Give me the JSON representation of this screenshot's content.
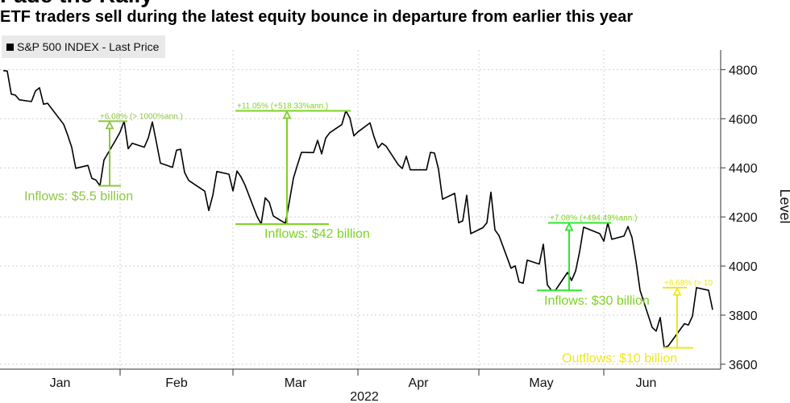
{
  "headline": "Fade the Rally",
  "chart_data": {
    "type": "line",
    "title": "ETF traders sell during the latest equity bounce in departure from earlier this year",
    "ylabel": "Level",
    "xlabel": "2022",
    "ylim": [
      3580,
      4880
    ],
    "yticks": [
      3600,
      3800,
      4000,
      4200,
      4400,
      4600,
      4800
    ],
    "month_ticks": [
      "Jan",
      "Feb",
      "Mar",
      "Apr",
      "May",
      "Jun"
    ],
    "series": [
      {
        "name": "S&P 500 INDEX - Last Price",
        "color": "#000000",
        "dates": [
          "2022-01-03",
          "2022-01-04",
          "2022-01-05",
          "2022-01-06",
          "2022-01-07",
          "2022-01-10",
          "2022-01-11",
          "2022-01-12",
          "2022-01-13",
          "2022-01-14",
          "2022-01-18",
          "2022-01-19",
          "2022-01-20",
          "2022-01-21",
          "2022-01-24",
          "2022-01-25",
          "2022-01-26",
          "2022-01-27",
          "2022-01-28",
          "2022-01-31",
          "2022-02-01",
          "2022-02-02",
          "2022-02-03",
          "2022-02-04",
          "2022-02-07",
          "2022-02-08",
          "2022-02-09",
          "2022-02-10",
          "2022-02-11",
          "2022-02-14",
          "2022-02-15",
          "2022-02-16",
          "2022-02-17",
          "2022-02-18",
          "2022-02-22",
          "2022-02-23",
          "2022-02-24",
          "2022-02-25",
          "2022-02-28",
          "2022-03-01",
          "2022-03-02",
          "2022-03-03",
          "2022-03-04",
          "2022-03-07",
          "2022-03-08",
          "2022-03-09",
          "2022-03-10",
          "2022-03-11",
          "2022-03-14",
          "2022-03-15",
          "2022-03-16",
          "2022-03-17",
          "2022-03-18",
          "2022-03-21",
          "2022-03-22",
          "2022-03-23",
          "2022-03-24",
          "2022-03-25",
          "2022-03-28",
          "2022-03-29",
          "2022-03-30",
          "2022-03-31",
          "2022-04-01",
          "2022-04-04",
          "2022-04-05",
          "2022-04-06",
          "2022-04-07",
          "2022-04-08",
          "2022-04-11",
          "2022-04-12",
          "2022-04-13",
          "2022-04-14",
          "2022-04-18",
          "2022-04-19",
          "2022-04-20",
          "2022-04-21",
          "2022-04-22",
          "2022-04-25",
          "2022-04-26",
          "2022-04-27",
          "2022-04-28",
          "2022-04-29",
          "2022-05-02",
          "2022-05-03",
          "2022-05-04",
          "2022-05-05",
          "2022-05-06",
          "2022-05-09",
          "2022-05-10",
          "2022-05-11",
          "2022-05-12",
          "2022-05-13",
          "2022-05-16",
          "2022-05-17",
          "2022-05-18",
          "2022-05-19",
          "2022-05-20",
          "2022-05-23",
          "2022-05-24",
          "2022-05-25",
          "2022-05-26",
          "2022-05-27",
          "2022-05-31",
          "2022-06-01",
          "2022-06-02",
          "2022-06-03",
          "2022-06-06",
          "2022-06-07",
          "2022-06-08",
          "2022-06-09",
          "2022-06-10",
          "2022-06-13",
          "2022-06-14",
          "2022-06-15",
          "2022-06-16",
          "2022-06-17",
          "2022-06-21",
          "2022-06-22",
          "2022-06-23",
          "2022-06-24",
          "2022-06-27",
          "2022-06-28"
        ],
        "values": [
          4796,
          4794,
          4700,
          4696,
          4677,
          4670,
          4713,
          4726,
          4659,
          4663,
          4577,
          4533,
          4483,
          4398,
          4410,
          4357,
          4350,
          4327,
          4432,
          4516,
          4546,
          4590,
          4478,
          4500,
          4484,
          4522,
          4587,
          4504,
          4419,
          4402,
          4472,
          4476,
          4381,
          4349,
          4305,
          4226,
          4288,
          4385,
          4374,
          4306,
          4387,
          4363,
          4329,
          4201,
          4171,
          4278,
          4260,
          4204,
          4174,
          4263,
          4358,
          4412,
          4463,
          4462,
          4512,
          4457,
          4521,
          4543,
          4576,
          4632,
          4603,
          4530,
          4546,
          4583,
          4526,
          4481,
          4500,
          4488,
          4413,
          4397,
          4447,
          4392,
          4392,
          4463,
          4460,
          4394,
          4272,
          4296,
          4176,
          4184,
          4288,
          4132,
          4156,
          4176,
          4301,
          4147,
          4124,
          3991,
          4001,
          3935,
          3930,
          4024,
          4008,
          4089,
          3923,
          3901,
          3901,
          3974,
          3941,
          3979,
          4058,
          4158,
          4132,
          4101,
          4176,
          4109,
          4122,
          4161,
          4116,
          4018,
          3901,
          3750,
          3735,
          3790,
          3667,
          3675,
          3765,
          3760,
          3796,
          3912,
          3901,
          3822
        ]
      }
    ],
    "annotations": [
      {
        "id": "a1",
        "color": "#8dc63f",
        "text_color": "#8dc63f",
        "start_date": "2022-01-27",
        "end_date": "2022-02-02",
        "low": 4327,
        "high": 4590,
        "label": "Inflows: $5.5 billion",
        "return": "+6.08% (> 1000%ann.)"
      },
      {
        "id": "a2",
        "color": "#7ed321",
        "text_color": "#7ed321",
        "start_date": "2022-03-08",
        "end_date": "2022-03-29",
        "low": 4171,
        "high": 4632,
        "label": "Inflows: $42 billion",
        "return": "+11.05% (+518.33%ann.)"
      },
      {
        "id": "a3",
        "color": "#2ee82e",
        "text_color": "#7ed321",
        "start_date": "2022-05-19",
        "end_date": "2022-06-02",
        "low": 3901,
        "high": 4176,
        "label": "Inflows: $30 billion",
        "return": "+7.08% (+494.49%ann.)"
      },
      {
        "id": "a4",
        "color": "#f0e61e",
        "text_color": "#f0e61e",
        "start_date": "2022-06-16",
        "end_date": "2022-06-24",
        "low": 3667,
        "high": 3912,
        "label": "Outflows: $10 billion",
        "return": "+6.68% (> 10"
      }
    ]
  }
}
